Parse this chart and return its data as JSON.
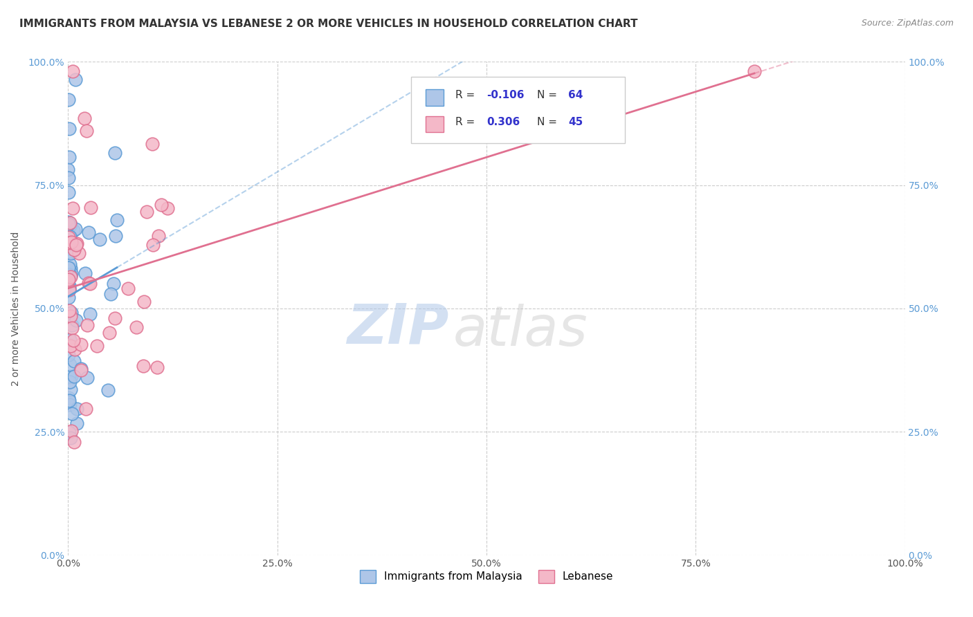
{
  "title": "IMMIGRANTS FROM MALAYSIA VS LEBANESE 2 OR MORE VEHICLES IN HOUSEHOLD CORRELATION CHART",
  "source": "Source: ZipAtlas.com",
  "ylabel": "2 or more Vehicles in Household",
  "watermark_zip": "ZIP",
  "watermark_atlas": "atlas",
  "series": [
    {
      "label": "Immigrants from Malaysia",
      "color": "#aec6e8",
      "edge_color": "#5b9bd5",
      "R": -0.106,
      "N": 64,
      "trend_color": "#5b9bd5"
    },
    {
      "label": "Lebanese",
      "color": "#f4b8c8",
      "edge_color": "#e07090",
      "R": 0.306,
      "N": 45,
      "trend_color": "#e07090"
    }
  ],
  "xlim": [
    0.0,
    1.0
  ],
  "ylim": [
    0.0,
    1.0
  ],
  "xticks": [
    0.0,
    0.25,
    0.5,
    0.75,
    1.0
  ],
  "yticks": [
    0.0,
    0.25,
    0.5,
    0.75,
    1.0
  ],
  "xticklabels": [
    "0.0%",
    "25.0%",
    "50.0%",
    "75.0%",
    "100.0%"
  ],
  "yticklabels": [
    "0.0%",
    "25.0%",
    "50.0%",
    "75.0%",
    "100.0%"
  ],
  "right_yticklabels": [
    "0.0%",
    "25.0%",
    "50.0%",
    "75.0%",
    "100.0%"
  ],
  "grid_color": "#cccccc",
  "background_color": "#ffffff",
  "title_fontsize": 11,
  "axis_fontsize": 10,
  "tick_fontsize": 10,
  "legend_color": "#3333cc"
}
